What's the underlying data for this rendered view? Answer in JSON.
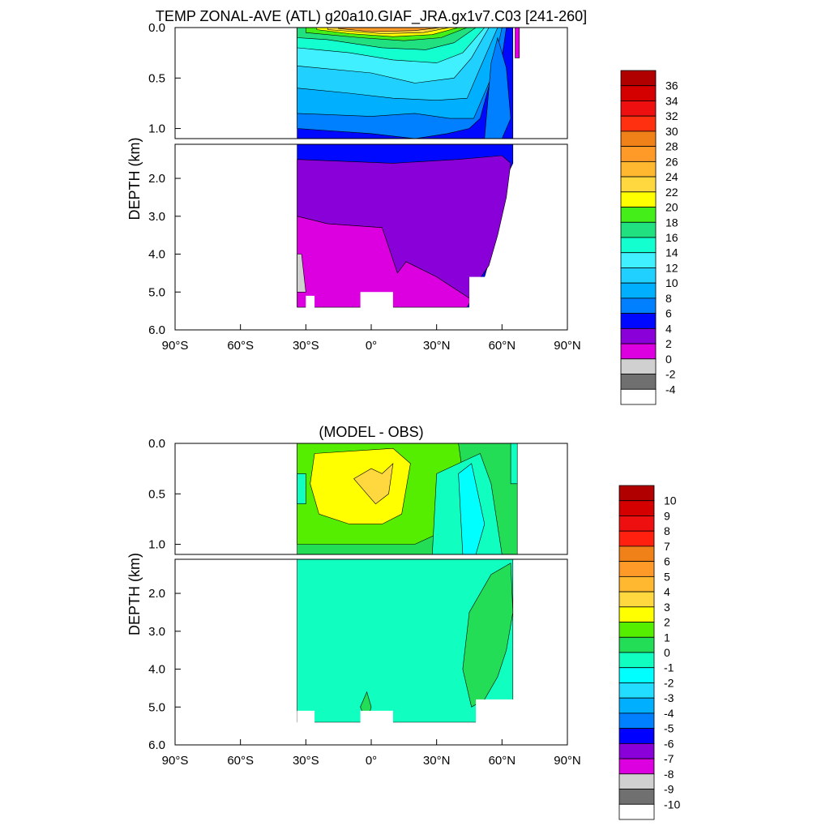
{
  "chart_data": [
    {
      "type": "contour",
      "title": "TEMP ZONAL-AVE (ATL) g20a10.GIAF_JRA.gx1v7.C03 [241-260]",
      "xlabel": "",
      "ylabel": "DEPTH (km)",
      "x_ticks": [
        "90°S",
        "60°S",
        "30°S",
        "0°",
        "30°N",
        "60°N",
        "90°N"
      ],
      "x_range_lat": [
        -90,
        90
      ],
      "y_ticks_upper": [
        "0.0",
        "0.5",
        "1.0"
      ],
      "y_ticks_lower": [
        "2.0",
        "3.0",
        "4.0",
        "5.0",
        "6.0"
      ],
      "y_range_upper_km": [
        0,
        1.1
      ],
      "y_range_lower_km": [
        1.1,
        6.0
      ],
      "data_extent_lat": [
        -34,
        67
      ],
      "colorbar": {
        "labels": [
          "36",
          "34",
          "32",
          "30",
          "28",
          "26",
          "24",
          "22",
          "20",
          "18",
          "16",
          "14",
          "12",
          "10",
          "8",
          "6",
          "4",
          "2",
          "0",
          "-2",
          "-4"
        ],
        "colors": [
          "#b00000",
          "#d40000",
          "#ee1010",
          "#ff3010",
          "#f08018",
          "#ff9a28",
          "#ffb830",
          "#ffd840",
          "#ffff00",
          "#44ee18",
          "#20e080",
          "#14ffd0",
          "#40f0ff",
          "#20d0ff",
          "#00b0ff",
          "#0080ff",
          "#0008ff",
          "#8a00d8",
          "#dc00e0",
          "#d0d0d0",
          "#707070",
          "#ffffff"
        ]
      },
      "fields": [
        {
          "name": "0 to 2",
          "color": "#dc00e0"
        },
        {
          "name": "2 to 4",
          "color": "#8a00d8"
        },
        {
          "name": "4 to 6",
          "color": "#0008ff"
        },
        {
          "name": "-4 to -2",
          "color": "#d0d0d0"
        },
        {
          "name": "26 to 28",
          "color": "#ff9a28"
        }
      ]
    },
    {
      "type": "contour",
      "title": "(MODEL - OBS)",
      "xlabel": "",
      "ylabel": "DEPTH (km)",
      "x_ticks": [
        "90°S",
        "60°S",
        "30°S",
        "0°",
        "30°N",
        "60°N",
        "90°N"
      ],
      "x_range_lat": [
        -90,
        90
      ],
      "y_ticks_upper": [
        "0.0",
        "0.5",
        "1.0"
      ],
      "y_ticks_lower": [
        "2.0",
        "3.0",
        "4.0",
        "5.0",
        "6.0"
      ],
      "y_range_upper_km": [
        0,
        1.1
      ],
      "y_range_lower_km": [
        1.1,
        6.0
      ],
      "data_extent_lat": [
        -34,
        67
      ],
      "colorbar": {
        "labels": [
          "10",
          "9",
          "8",
          "7",
          "6",
          "5",
          "4",
          "3",
          "2",
          "1",
          "0",
          "-1",
          "-2",
          "-3",
          "-4",
          "-5",
          "-6",
          "-7",
          "-8",
          "-9",
          "-10"
        ],
        "colors": [
          "#b00000",
          "#d40000",
          "#ee1010",
          "#ff2010",
          "#f08018",
          "#ff9a28",
          "#ffb830",
          "#ffd840",
          "#ffff00",
          "#55ee00",
          "#22dd55",
          "#10ffc0",
          "#00ffff",
          "#22ddff",
          "#00b0ff",
          "#0080ff",
          "#0000ff",
          "#8a00d8",
          "#dc00e0",
          "#d0d0d0",
          "#707070",
          "#ffffff"
        ]
      },
      "fields": [
        {
          "name": "-1 to 0",
          "color": "#10ffc0"
        },
        {
          "name": "0 to 1",
          "color": "#22dd55"
        },
        {
          "name": "1 to 2",
          "color": "#55ee00"
        },
        {
          "name": "2 to 3",
          "color": "#ffff00"
        },
        {
          "name": "-2 to -1",
          "color": "#00ffff"
        }
      ]
    }
  ]
}
